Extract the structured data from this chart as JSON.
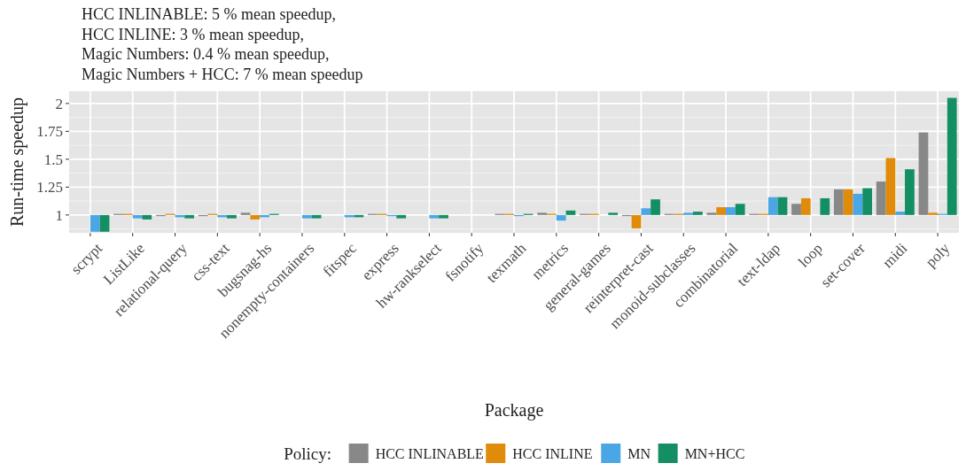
{
  "chart_data": {
    "type": "bar",
    "title": "HCC INLINABLE: 5 % mean speedup,\nHCC INLINE: 3 % mean speedup,\nMagic Numbers: 0.4 % mean speedup,\nMagic Numbers + HCC: 7 % mean speedup",
    "xlabel": "Package",
    "ylabel": "Run-time speedup",
    "legend_title": "Policy:",
    "categories": [
      "scrypt",
      "ListLike",
      "relational-query",
      "css-text",
      "bugsnag-hs",
      "nonempty-containers",
      "fitspec",
      "express",
      "hw-rankselect",
      "fsnotify",
      "texmath",
      "metrics",
      "general-games",
      "reinterpret-cast",
      "monoid-subclasses",
      "combinatorial",
      "text-ldap",
      "loop",
      "set-cover",
      "midi",
      "poly"
    ],
    "series": [
      {
        "name": "HCC INLINABLE",
        "color": "#888888",
        "base": [
          null,
          1,
          1,
          1,
          1,
          null,
          null,
          1,
          null,
          null,
          1,
          1,
          1,
          1,
          1,
          1,
          1,
          1,
          1,
          1,
          1
        ],
        "values": [
          null,
          0.01,
          -0.01,
          -0.01,
          0.02,
          null,
          null,
          0.01,
          null,
          null,
          0.01,
          0.02,
          0.01,
          -0.01,
          0.01,
          0.02,
          0.01,
          0.1,
          0.23,
          0.3,
          0.74
        ]
      },
      {
        "name": "HCC INLINE",
        "color": "#e08b0a",
        "base": [
          null,
          1,
          1,
          1,
          1,
          null,
          null,
          1,
          null,
          null,
          1,
          1,
          1,
          1,
          1,
          1,
          1,
          1,
          1,
          1,
          1
        ],
        "values": [
          null,
          0.01,
          0.01,
          0.01,
          -0.04,
          null,
          null,
          0.01,
          null,
          null,
          0.01,
          0.01,
          0.01,
          -0.12,
          0.01,
          0.07,
          0.01,
          0.15,
          0.23,
          0.51,
          0.02
        ]
      },
      {
        "name": "MN",
        "color": "#4aa6e4",
        "base": [
          1,
          1,
          1,
          1,
          1,
          1,
          1,
          1,
          1,
          null,
          1,
          1,
          null,
          1,
          1,
          1,
          1,
          null,
          1,
          1,
          1
        ],
        "values": [
          -0.15,
          -0.03,
          -0.02,
          -0.02,
          -0.02,
          -0.03,
          -0.02,
          -0.01,
          -0.03,
          null,
          -0.01,
          -0.05,
          null,
          0.06,
          0.02,
          0.07,
          0.16,
          null,
          0.19,
          0.03,
          0.01
        ]
      },
      {
        "name": "MN+HCC",
        "color": "#148f63",
        "base": [
          1,
          1,
          1,
          1,
          1,
          1,
          1,
          1,
          1,
          null,
          1,
          1,
          1,
          1,
          1,
          1,
          1,
          1,
          1,
          1,
          1
        ],
        "values": [
          -0.15,
          -0.04,
          -0.03,
          -0.03,
          0.01,
          -0.03,
          -0.02,
          -0.03,
          -0.03,
          null,
          0.01,
          0.04,
          0.02,
          0.14,
          0.03,
          0.1,
          0.16,
          0.15,
          0.24,
          0.41,
          1.05
        ]
      }
    ],
    "ylim": [
      0.84,
      2.11
    ],
    "yticks": [
      1,
      1.25,
      1.5,
      1.75,
      2
    ],
    "grid": true,
    "legend": "bottom"
  }
}
